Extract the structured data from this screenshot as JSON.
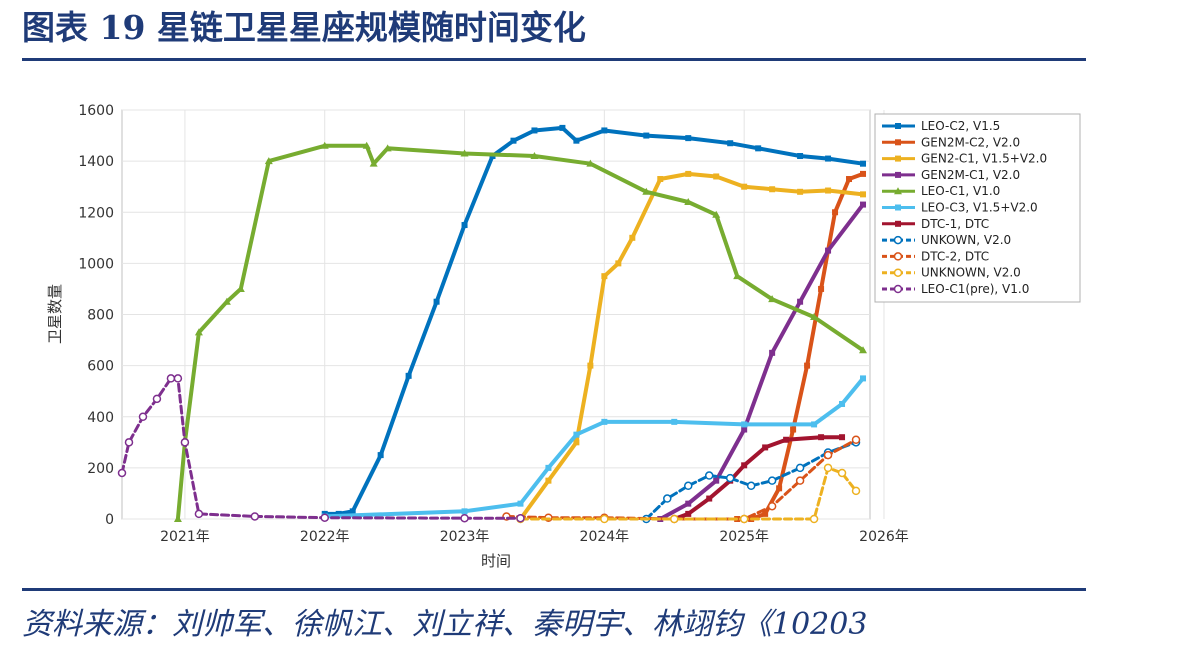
{
  "figure": {
    "title": "图表 19    星链卫星星座规模随时间变化",
    "source": "资料来源：刘帅军、徐帆江、刘立祥、秦明宇、林翊钧《10203"
  },
  "chart_data": {
    "type": "line",
    "title": "",
    "xlabel": "时间",
    "ylabel": "卫星数量",
    "xlim": [
      2020.55,
      2025.9
    ],
    "ylim": [
      0,
      1600
    ],
    "xticks": [
      2021,
      2022,
      2023,
      2024,
      2025,
      2026
    ],
    "xtick_labels": [
      "2021年",
      "2022年",
      "2023年",
      "2024年",
      "2025年",
      "2026年"
    ],
    "yticks": [
      0,
      200,
      400,
      600,
      800,
      1000,
      1200,
      1400,
      1600
    ],
    "ytick_labels": [
      "0",
      "200",
      "400",
      "600",
      "800",
      "1000",
      "1200",
      "1400",
      "1600"
    ],
    "grid": true,
    "legend_position": "top-right",
    "series": [
      {
        "name": "LEO-C2, V1.5",
        "color": "#0072bd",
        "marker": "square",
        "x": [
          2022.0,
          2022.1,
          2022.2,
          2022.4,
          2022.6,
          2022.8,
          2023.0,
          2023.2,
          2023.35,
          2023.5,
          2023.7,
          2023.8,
          2024.0,
          2024.3,
          2024.6,
          2024.9,
          2025.1,
          2025.4,
          2025.6,
          2025.85
        ],
        "y": [
          20,
          20,
          30,
          250,
          560,
          850,
          1150,
          1420,
          1480,
          1520,
          1530,
          1480,
          1520,
          1500,
          1490,
          1470,
          1450,
          1420,
          1410,
          1390
        ]
      },
      {
        "name": "GEN2M-C2, V2.0",
        "color": "#d95319",
        "marker": "square",
        "x": [
          2024.95,
          2025.05,
          2025.15,
          2025.25,
          2025.35,
          2025.45,
          2025.55,
          2025.65,
          2025.75,
          2025.85
        ],
        "y": [
          0,
          0,
          20,
          120,
          350,
          600,
          900,
          1200,
          1330,
          1350
        ]
      },
      {
        "name": "GEN2-C1, V1.5+V2.0",
        "color": "#edb120",
        "marker": "square",
        "x": [
          2023.4,
          2023.6,
          2023.8,
          2023.9,
          2024.0,
          2024.1,
          2024.2,
          2024.4,
          2024.6,
          2024.8,
          2025.0,
          2025.2,
          2025.4,
          2025.6,
          2025.85
        ],
        "y": [
          0,
          150,
          300,
          600,
          950,
          1000,
          1100,
          1330,
          1350,
          1340,
          1300,
          1290,
          1280,
          1285,
          1270
        ]
      },
      {
        "name": "GEN2M-C1, V2.0",
        "color": "#7e2f8e",
        "marker": "square",
        "x": [
          2024.4,
          2024.6,
          2024.8,
          2025.0,
          2025.2,
          2025.4,
          2025.6,
          2025.85
        ],
        "y": [
          0,
          60,
          150,
          350,
          650,
          850,
          1050,
          1230
        ]
      },
      {
        "name": "LEO-C1, V1.0",
        "color": "#77ac30",
        "marker": "triangle",
        "x": [
          2020.95,
          2021.0,
          2021.1,
          2021.3,
          2021.4,
          2021.6,
          2022.0,
          2022.3,
          2022.35,
          2022.45,
          2023.0,
          2023.5,
          2023.9,
          2024.3,
          2024.6,
          2024.8,
          2024.95,
          2025.2,
          2025.5,
          2025.85
        ],
        "y": [
          0,
          300,
          730,
          850,
          900,
          1400,
          1460,
          1460,
          1390,
          1450,
          1430,
          1420,
          1390,
          1280,
          1240,
          1190,
          950,
          860,
          790,
          660
        ]
      },
      {
        "name": "LEO-C3, V1.5+V2.0",
        "color": "#4dbeee",
        "marker": "square",
        "x": [
          2022.0,
          2023.0,
          2023.4,
          2023.6,
          2023.8,
          2024.0,
          2024.5,
          2025.0,
          2025.5,
          2025.7,
          2025.85
        ],
        "y": [
          10,
          30,
          60,
          200,
          330,
          380,
          380,
          370,
          370,
          450,
          550
        ]
      },
      {
        "name": "DTC-1, DTC",
        "color": "#a2142f",
        "marker": "square",
        "x": [
          2024.5,
          2024.6,
          2024.75,
          2024.9,
          2025.0,
          2025.15,
          2025.3,
          2025.55,
          2025.7
        ],
        "y": [
          0,
          20,
          80,
          150,
          210,
          280,
          310,
          320,
          320
        ]
      },
      {
        "name": "UNKOWN, V2.0",
        "color": "#0072bd",
        "marker": "circle",
        "x": [
          2024.3,
          2024.45,
          2024.6,
          2024.75,
          2024.9,
          2025.05,
          2025.2,
          2025.4,
          2025.6,
          2025.8
        ],
        "y": [
          0,
          80,
          130,
          170,
          160,
          130,
          150,
          200,
          260,
          300
        ]
      },
      {
        "name": "DTC-2, DTC",
        "color": "#d95319",
        "marker": "circle",
        "x": [
          2023.3,
          2023.6,
          2024.0,
          2024.5,
          2025.0,
          2025.2,
          2025.4,
          2025.6,
          2025.8
        ],
        "y": [
          10,
          5,
          5,
          0,
          0,
          50,
          150,
          250,
          310
        ]
      },
      {
        "name": "UNKNOWN, V2.0",
        "color": "#edb120",
        "marker": "circle",
        "x": [
          2023.4,
          2024.0,
          2024.5,
          2025.0,
          2025.5,
          2025.6,
          2025.7,
          2025.8
        ],
        "y": [
          0,
          0,
          0,
          0,
          0,
          200,
          180,
          110
        ]
      },
      {
        "name": "LEO-C1(pre), V1.0",
        "color": "#7e2f8e",
        "marker": "circle",
        "x": [
          2020.55,
          2020.6,
          2020.7,
          2020.8,
          2020.9,
          2020.95,
          2021.0,
          2021.1,
          2021.5,
          2022.0,
          2023.0,
          2023.4
        ],
        "y": [
          180,
          300,
          400,
          470,
          550,
          550,
          300,
          20,
          10,
          5,
          3,
          3
        ]
      }
    ]
  }
}
